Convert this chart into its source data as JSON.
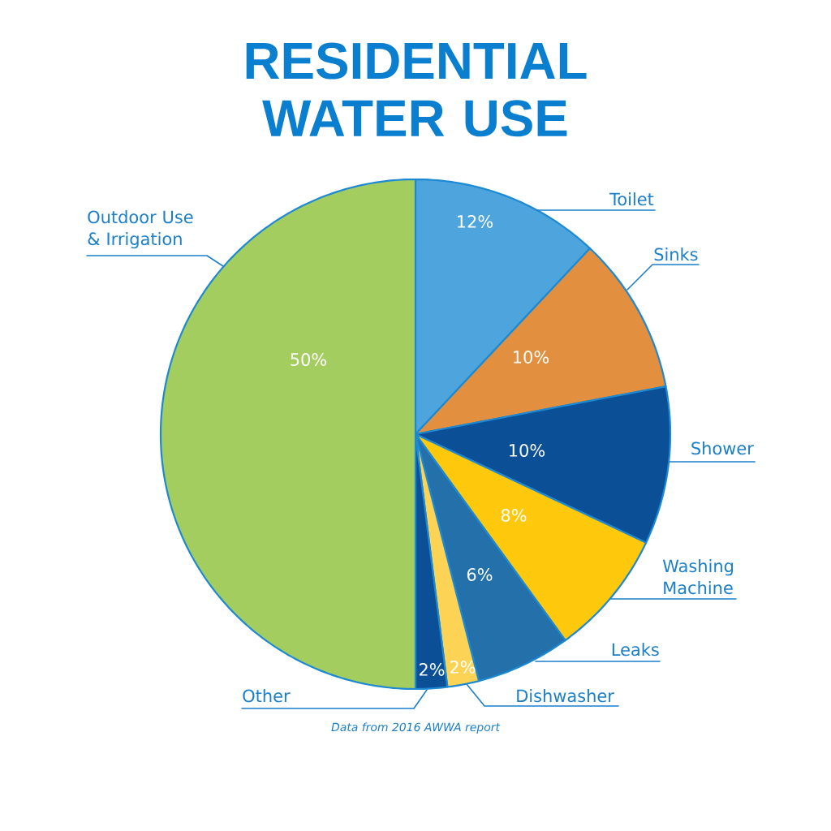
{
  "chart_data": {
    "type": "pie",
    "title": "RESIDENTIAL WATER USE",
    "categories": [
      "Toilet",
      "Sinks",
      "Shower",
      "Washing Machine",
      "Leaks",
      "Dishwasher",
      "Other",
      "Outdoor Use & Irrigation"
    ],
    "values": [
      12,
      10,
      10,
      8,
      6,
      2,
      2,
      50
    ],
    "colors": [
      "#4ea5dd",
      "#e28f3f",
      "#0b4f96",
      "#fec80c",
      "#2370ab",
      "#fdd356",
      "#0b4f96",
      "#a4cd60"
    ],
    "value_labels": [
      "12%",
      "10%",
      "10%",
      "8%",
      "6%",
      "2%",
      "2%",
      "50%"
    ],
    "annotations": [
      "Data from 2016 AWWA report"
    ]
  }
}
